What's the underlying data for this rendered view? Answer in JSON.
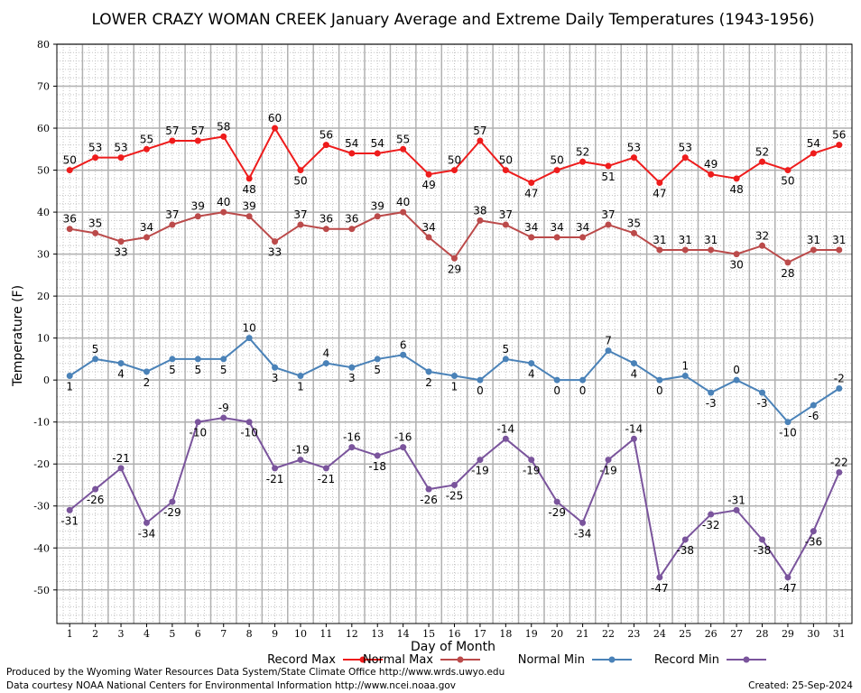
{
  "chart_data": {
    "type": "line",
    "title": "LOWER CRAZY WOMAN CREEK January Average and Extreme Daily Temperatures (1943-1956)",
    "xlabel": "Day of Month",
    "ylabel": "Temperature (F)",
    "ylim": [
      -58,
      80
    ],
    "yticks": [
      80,
      70,
      60,
      50,
      40,
      30,
      20,
      10,
      0,
      -10,
      -20,
      -30,
      -40,
      -50
    ],
    "x": [
      1,
      2,
      3,
      4,
      5,
      6,
      7,
      8,
      9,
      10,
      11,
      12,
      13,
      14,
      15,
      16,
      17,
      18,
      19,
      20,
      21,
      22,
      23,
      24,
      25,
      26,
      27,
      28,
      29,
      30,
      31
    ],
    "grid": true,
    "legend_position": "bottom",
    "series": [
      {
        "name": "Record Max",
        "color": "#ee1c1c",
        "values": [
          50,
          53,
          53,
          55,
          57,
          57,
          58,
          48,
          60,
          50,
          56,
          54,
          54,
          55,
          49,
          50,
          57,
          50,
          47,
          50,
          52,
          51,
          53,
          47,
          53,
          49,
          48,
          52,
          50,
          54,
          56
        ]
      },
      {
        "name": "Normal Max",
        "color": "#bb4a4a",
        "values": [
          36,
          35,
          33,
          34,
          37,
          39,
          40,
          39,
          33,
          37,
          36,
          36,
          39,
          40,
          34,
          29,
          38,
          37,
          34,
          34,
          34,
          37,
          35,
          31,
          31,
          31,
          30,
          32,
          28,
          31,
          31
        ]
      },
      {
        "name": "Normal Min",
        "color": "#4a82b8",
        "values": [
          1,
          5,
          4,
          2,
          5,
          5,
          5,
          10,
          3,
          1,
          4,
          3,
          5,
          6,
          2,
          1,
          0,
          5,
          4,
          0,
          0,
          7,
          4,
          0,
          1,
          -3,
          0,
          -3,
          -10,
          -6,
          -2
        ]
      },
      {
        "name": "Record Min",
        "color": "#7a549c",
        "values": [
          -31,
          -26,
          -21,
          -34,
          -29,
          -10,
          -9,
          -10,
          -21,
          -19,
          -21,
          -16,
          -18,
          -16,
          -26,
          -25,
          -19,
          -14,
          -19,
          -29,
          -34,
          -19,
          -14,
          -47,
          -38,
          -32,
          -31,
          -38,
          -47,
          -36,
          -22
        ]
      }
    ]
  },
  "footer": {
    "line1": "Produced by the Wyoming Water Resources Data System/State Climate Office http://www.wrds.uwyo.edu",
    "line2": "Data courtesy NOAA National Centers for Environmental Information http://www.ncei.noaa.gov",
    "created": "Created:  25-Sep-2024"
  }
}
